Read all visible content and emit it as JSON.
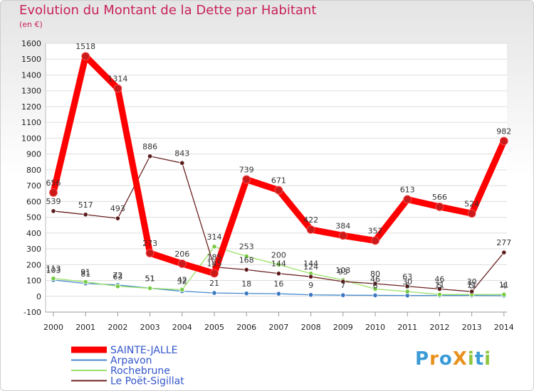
{
  "chart_data": {
    "type": "line",
    "title": "Evolution du Montant de la Dette par Habitant",
    "ylabel": "(en €)",
    "xlabel": "",
    "ylim": [
      -100,
      1600
    ],
    "yticks": [
      -100,
      0,
      100,
      200,
      300,
      400,
      500,
      600,
      700,
      800,
      900,
      1000,
      1100,
      1200,
      1300,
      1400,
      1500,
      1600
    ],
    "categories": [
      "2000",
      "2001",
      "2002",
      "2003",
      "2004",
      "2005",
      "2006",
      "2007",
      "2008",
      "2009",
      "2010",
      "2011",
      "2012",
      "2013",
      "2014"
    ],
    "grid": true,
    "legend_position": "bottom-left",
    "series": [
      {
        "name": "SAINTE-JALLE",
        "color": "#ff0000",
        "marker": "#cc1a1a",
        "values": [
          656,
          1518,
          1314,
          273,
          206,
          145,
          739,
          671,
          422,
          384,
          352,
          613,
          566,
          524,
          982
        ]
      },
      {
        "name": "Arpavon",
        "color": "#4488cc",
        "marker": "#3b78c0",
        "values": [
          103,
          81,
          72,
          51,
          32,
          21,
          18,
          16,
          9,
          7,
          6,
          5,
          5,
          5,
          4
        ]
      },
      {
        "name": "Rochebrune",
        "color": "#99e064",
        "marker": "#77cc44",
        "values": [
          113,
          91,
          63,
          51,
          42,
          314,
          253,
          200,
          144,
          103,
          46,
          30,
          11,
          11,
          11
        ]
      },
      {
        "name": "Le Poët-Sigillat",
        "color": "#6b2222",
        "marker": "#5a1a1a",
        "values": [
          539,
          517,
          493,
          886,
          843,
          185,
          168,
          144,
          124,
          93,
          80,
          63,
          46,
          30,
          277
        ]
      }
    ]
  },
  "brand": {
    "text": "ProXiti",
    "letters": [
      "P",
      "r",
      "o",
      "X",
      "i",
      "t",
      "i"
    ],
    "colors": [
      "#3b9bd6",
      "#e8901c",
      "#3b9bd6",
      "#e8901c",
      "#8fc63f",
      "#3b9bd6",
      "#8fc63f"
    ]
  }
}
